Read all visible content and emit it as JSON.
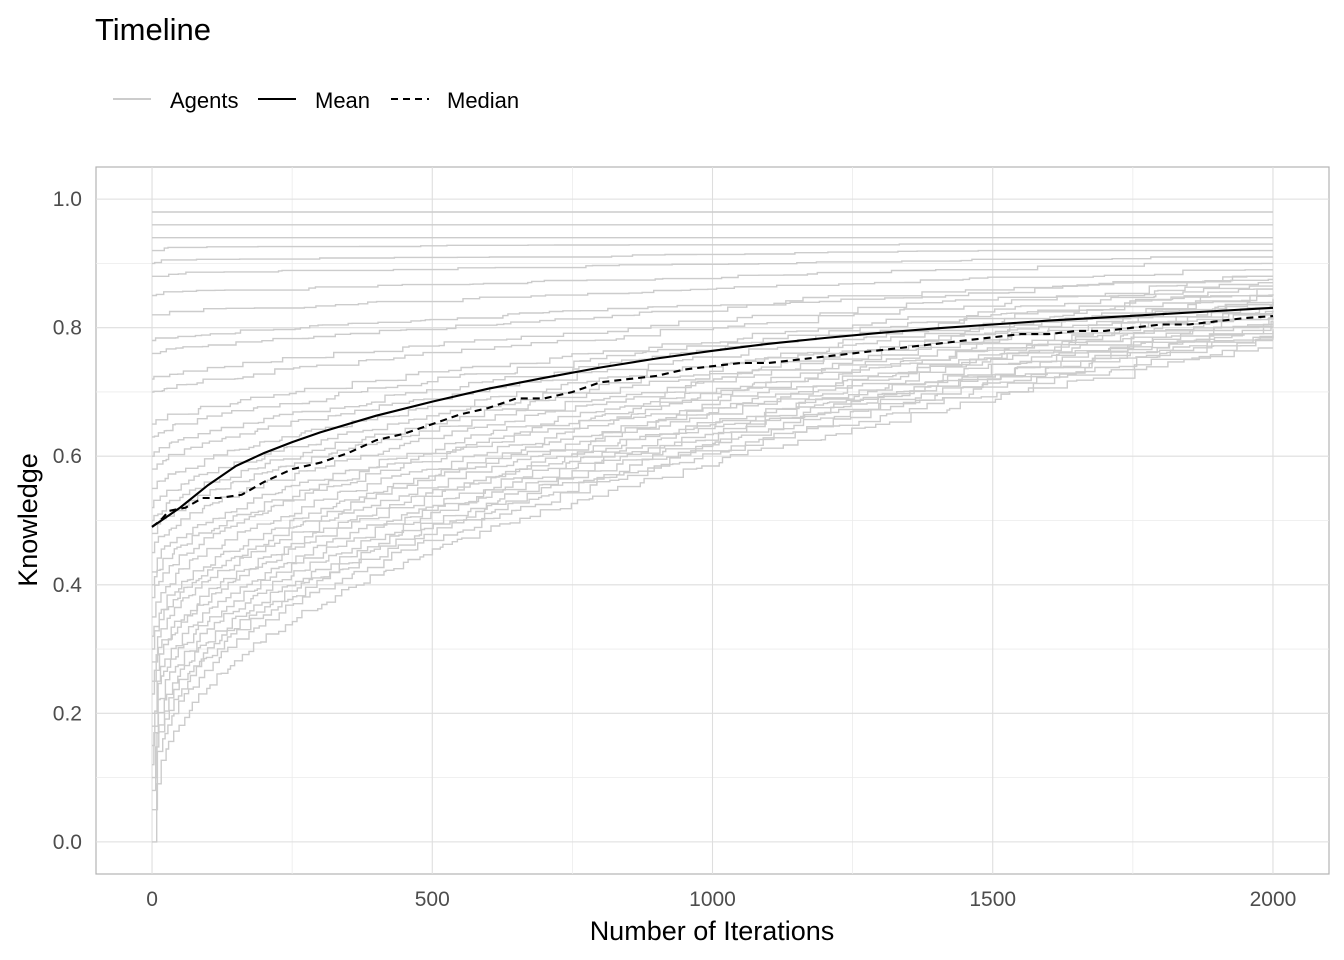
{
  "chart_data": {
    "type": "line",
    "title": "Timeline",
    "xlabel": "Number of Iterations",
    "ylabel": "Knowledge",
    "xlim": [
      -100,
      2100
    ],
    "ylim": [
      -0.05,
      1.05
    ],
    "x_ticks": [
      0,
      500,
      1000,
      1500,
      2000
    ],
    "x_tick_labels": [
      "0",
      "500",
      "1000",
      "1500",
      "2000"
    ],
    "y_ticks": [
      0.0,
      0.2,
      0.4,
      0.6,
      0.8,
      1.0
    ],
    "y_tick_labels": [
      "0.0",
      "0.2",
      "0.4",
      "0.6",
      "0.8",
      "1.0"
    ],
    "grid": true,
    "legend": {
      "position": "top-left",
      "entries": [
        {
          "label": "Agents",
          "color": "#cccccc",
          "dash": "solid"
        },
        {
          "label": "Mean",
          "color": "#000000",
          "dash": "solid"
        },
        {
          "label": "Median",
          "color": "#000000",
          "dash": "dashed"
        }
      ]
    },
    "agents": {
      "name": "Agents",
      "color": "#cccccc",
      "start": [
        0.0,
        0.05,
        0.08,
        0.1,
        0.12,
        0.15,
        0.18,
        0.2,
        0.23,
        0.25,
        0.28,
        0.3,
        0.32,
        0.35,
        0.38,
        0.4,
        0.42,
        0.45,
        0.48,
        0.5,
        0.52,
        0.55,
        0.58,
        0.6,
        0.63,
        0.65,
        0.7,
        0.72,
        0.76,
        0.78,
        0.82,
        0.85,
        0.88,
        0.9,
        0.92,
        0.94,
        0.96,
        0.98
      ],
      "end": [
        0.77,
        0.78,
        0.785,
        0.79,
        0.795,
        0.8,
        0.8,
        0.805,
        0.81,
        0.81,
        0.815,
        0.82,
        0.82,
        0.825,
        0.83,
        0.83,
        0.835,
        0.84,
        0.84,
        0.845,
        0.85,
        0.85,
        0.855,
        0.86,
        0.86,
        0.865,
        0.87,
        0.875,
        0.88,
        0.88,
        0.89,
        0.9,
        0.91,
        0.92,
        0.93,
        0.94,
        0.96,
        0.98
      ]
    },
    "series": [
      {
        "name": "Mean",
        "color": "#000000",
        "dash": "solid",
        "x": [
          0,
          25,
          50,
          100,
          150,
          200,
          250,
          300,
          400,
          500,
          600,
          700,
          800,
          900,
          1000,
          1100,
          1200,
          1300,
          1400,
          1500,
          1600,
          1700,
          1800,
          1900,
          2000
        ],
        "y": [
          0.49,
          0.505,
          0.52,
          0.555,
          0.585,
          0.605,
          0.622,
          0.637,
          0.663,
          0.685,
          0.705,
          0.722,
          0.738,
          0.752,
          0.764,
          0.775,
          0.784,
          0.792,
          0.799,
          0.805,
          0.811,
          0.816,
          0.821,
          0.826,
          0.831
        ]
      },
      {
        "name": "Median",
        "color": "#000000",
        "dash": "dashed",
        "x": [
          0,
          15,
          30,
          60,
          90,
          120,
          160,
          200,
          250,
          300,
          350,
          400,
          450,
          500,
          550,
          600,
          650,
          700,
          750,
          800,
          850,
          900,
          950,
          1000,
          1050,
          1100,
          1150,
          1200,
          1250,
          1300,
          1350,
          1400,
          1450,
          1500,
          1550,
          1600,
          1650,
          1700,
          1750,
          1800,
          1850,
          1900,
          1950,
          2000
        ],
        "y": [
          0.49,
          0.5,
          0.515,
          0.52,
          0.535,
          0.535,
          0.54,
          0.56,
          0.58,
          0.59,
          0.605,
          0.625,
          0.635,
          0.65,
          0.665,
          0.675,
          0.69,
          0.69,
          0.7,
          0.715,
          0.72,
          0.725,
          0.735,
          0.74,
          0.745,
          0.745,
          0.75,
          0.755,
          0.76,
          0.765,
          0.77,
          0.775,
          0.78,
          0.785,
          0.79,
          0.79,
          0.795,
          0.795,
          0.8,
          0.805,
          0.805,
          0.81,
          0.815,
          0.818
        ]
      }
    ]
  }
}
